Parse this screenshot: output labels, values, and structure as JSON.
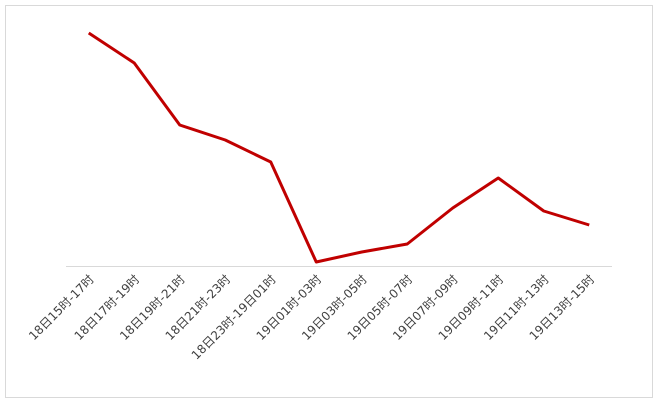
{
  "chart_data": {
    "type": "line",
    "categories": [
      "18日15时-17时",
      "18日17时-19时",
      "18日19时-21时",
      "18日21时-23时",
      "18日23时-19日01时",
      "19日01时-03时",
      "19日03时-05时",
      "19日05时-07时",
      "19日07时-09时",
      "19日09时-11时",
      "19日11时-13时",
      "19日13时-15时"
    ],
    "values": [
      233,
      203,
      141,
      126,
      104,
      4,
      14,
      22,
      58,
      88,
      55,
      41
    ],
    "color": "#c00000",
    "ylim": [
      0,
      250
    ]
  }
}
